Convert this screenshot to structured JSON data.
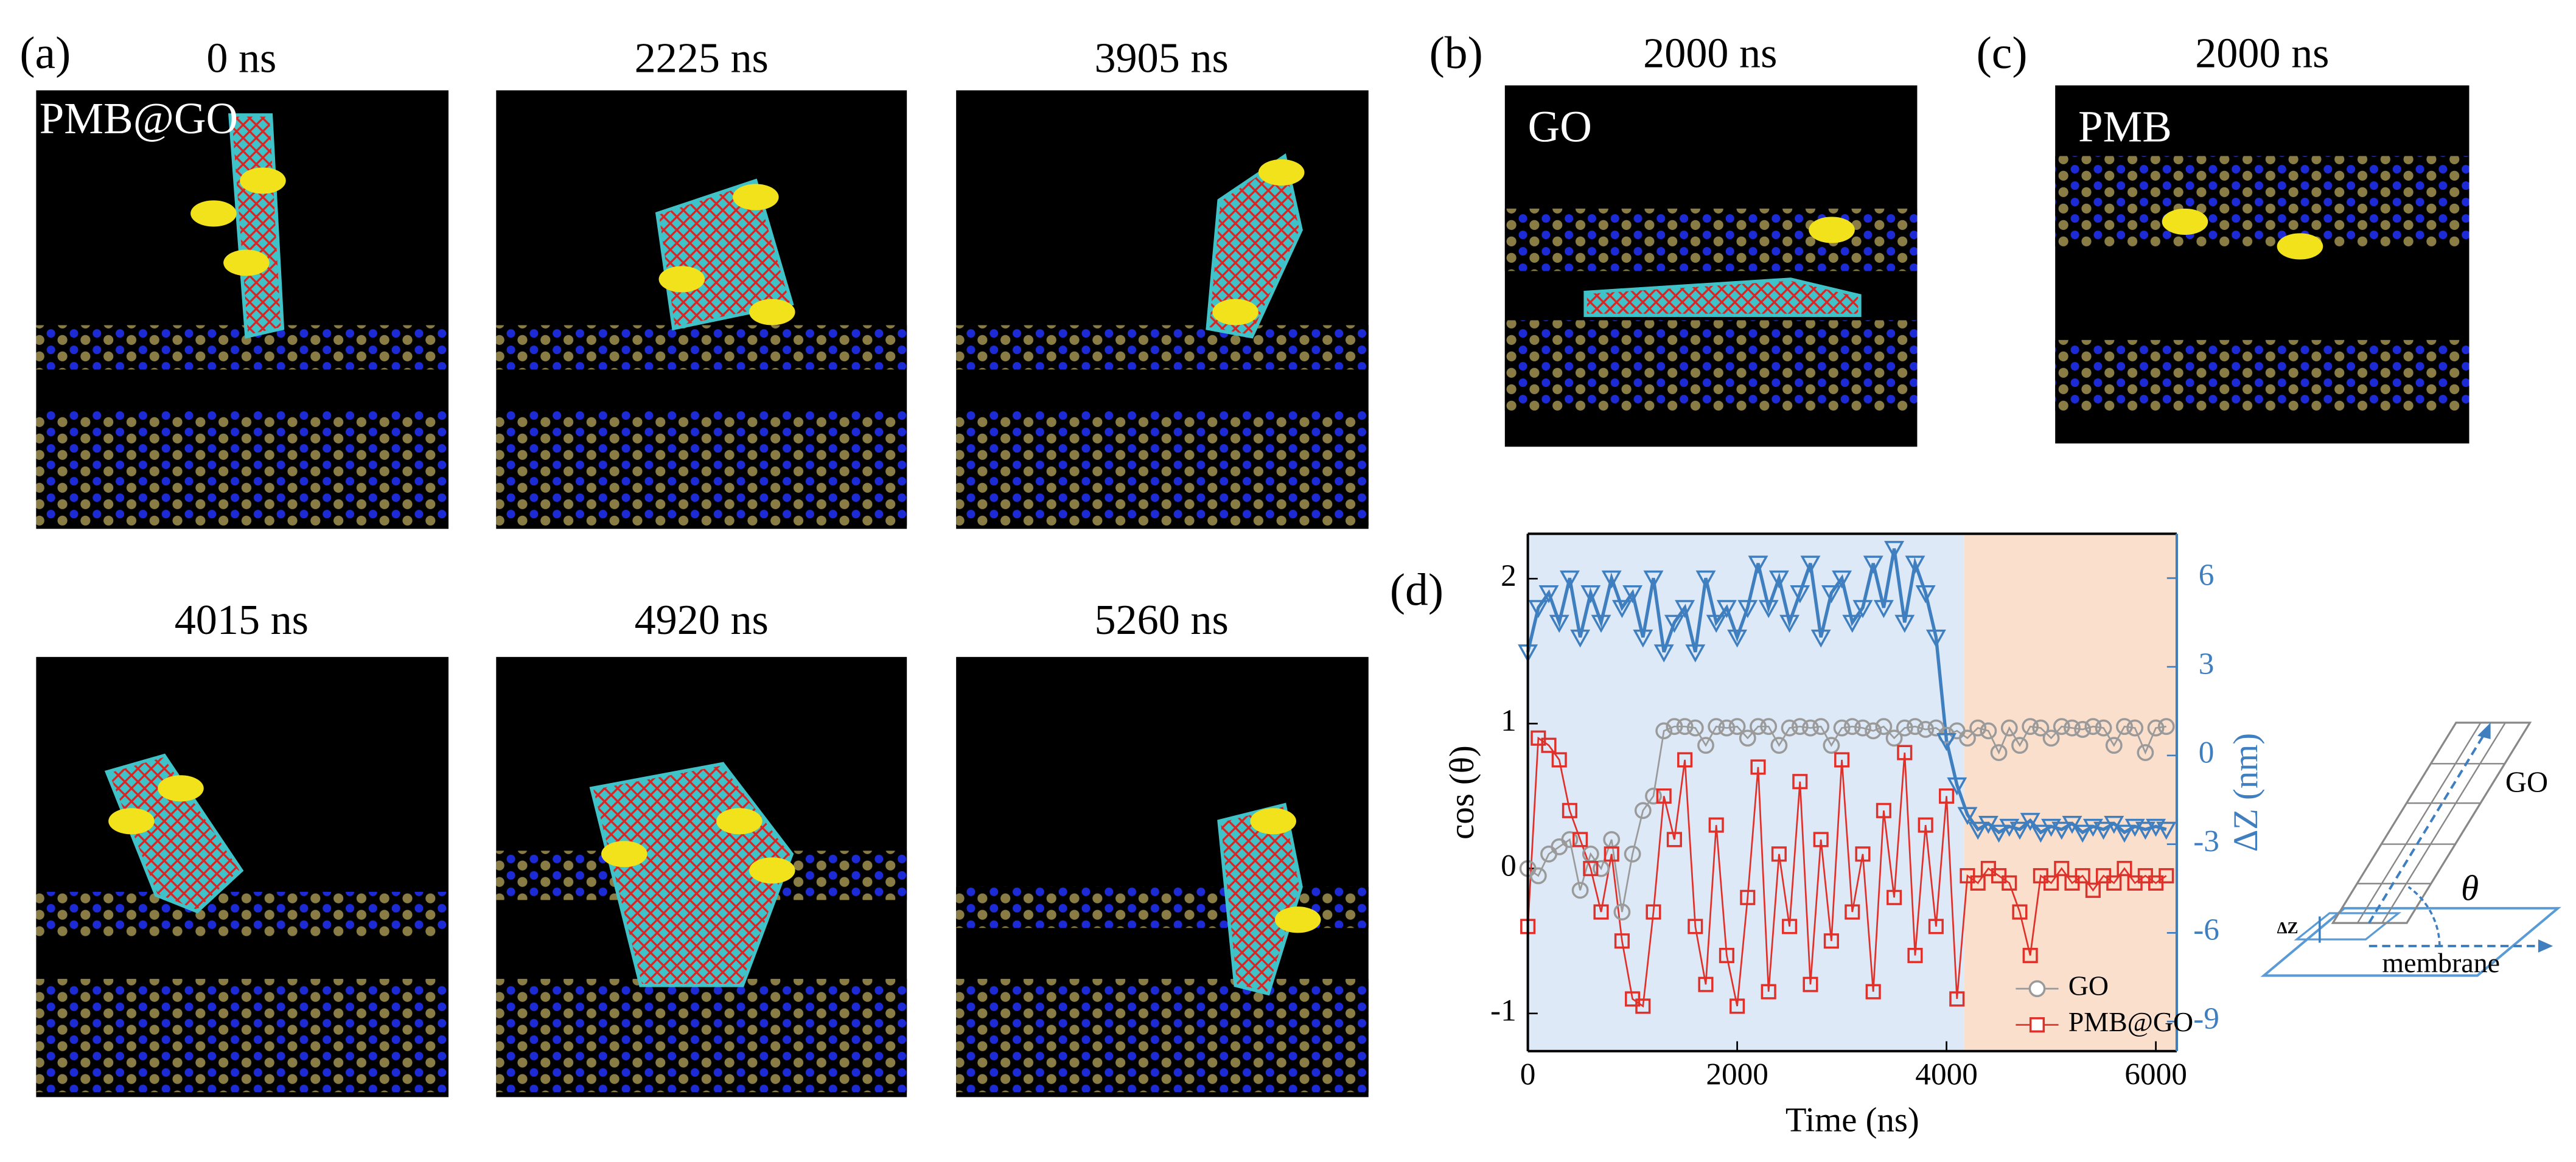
{
  "panel_labels": [
    "(a)",
    "(b)",
    "(c)",
    "(d)"
  ],
  "snapshots": [
    {
      "time": "0 ns",
      "tag": "PMB@GO"
    },
    {
      "time": "2225 ns"
    },
    {
      "time": "3905 ns"
    },
    {
      "time": "4015 ns"
    },
    {
      "time": "4920 ns"
    },
    {
      "time": "5260 ns"
    },
    {
      "time": "2000 ns",
      "tag": "GO"
    },
    {
      "time": "2000 ns",
      "tag": "PMB"
    }
  ],
  "chart_data": {
    "type": "line",
    "xlabel": "Time (ns)",
    "ylabel": "cos (θ)",
    "y2label": "ΔZ (nm)",
    "xlim": [
      0,
      6200
    ],
    "xticks": [
      0,
      2000,
      4000,
      6000
    ],
    "ylim": [
      -1.26,
      2.31
    ],
    "yticks": [
      -1,
      0,
      1,
      2
    ],
    "y2lim": [
      -10,
      7.5
    ],
    "y2ticks": [
      -9,
      -6,
      -3,
      0,
      3,
      6
    ],
    "y2color": "#3f7fbf",
    "legend": "lower right",
    "regions": [
      {
        "range": [
          0,
          4170
        ],
        "color": "#dde9f6"
      },
      {
        "range": [
          4170,
          6200
        ],
        "color": "#fadfcd"
      }
    ],
    "x": [
      0,
      100,
      200,
      300,
      400,
      500,
      600,
      700,
      800,
      900,
      1000,
      1100,
      1200,
      1300,
      1400,
      1500,
      1600,
      1700,
      1800,
      1900,
      2000,
      2100,
      2200,
      2300,
      2400,
      2500,
      2600,
      2700,
      2800,
      2900,
      3000,
      3100,
      3200,
      3300,
      3400,
      3500,
      3600,
      3700,
      3800,
      3900,
      4000,
      4100,
      4200,
      4300,
      4400,
      4500,
      4600,
      4700,
      4800,
      4900,
      5000,
      5100,
      5200,
      5300,
      5400,
      5500,
      5600,
      5700,
      5800,
      5900,
      6000,
      6100
    ],
    "series": [
      {
        "name": "GO",
        "color": "#9a9a9a",
        "marker": "circle",
        "axis": "y",
        "values": [
          0,
          -0.05,
          0.1,
          0.15,
          0.2,
          -0.15,
          0.1,
          0.0,
          0.2,
          -0.3,
          0.1,
          0.4,
          0.5,
          0.95,
          0.98,
          0.98,
          0.97,
          0.85,
          0.98,
          0.97,
          0.98,
          0.9,
          0.98,
          0.98,
          0.85,
          0.97,
          0.98,
          0.97,
          0.98,
          0.85,
          0.97,
          0.98,
          0.97,
          0.95,
          0.98,
          0.9,
          0.97,
          0.98,
          0.96,
          0.97,
          0.92,
          0.95,
          0.9,
          0.97,
          0.95,
          0.8,
          0.97,
          0.85,
          0.98,
          0.97,
          0.9,
          0.98,
          0.97,
          0.96,
          0.98,
          0.97,
          0.85,
          0.98,
          0.97,
          0.8,
          0.97,
          0.98
        ]
      },
      {
        "name": "PMB@GO",
        "color": "#e0302a",
        "marker": "square",
        "axis": "y",
        "values": [
          -0.4,
          0.9,
          0.85,
          0.75,
          0.4,
          0.2,
          0.0,
          -0.3,
          0.1,
          -0.5,
          -0.9,
          -0.95,
          -0.3,
          0.5,
          0.2,
          0.75,
          -0.4,
          -0.8,
          0.3,
          -0.6,
          -0.95,
          -0.2,
          0.7,
          -0.85,
          0.1,
          -0.4,
          0.6,
          -0.8,
          0.2,
          -0.5,
          0.75,
          -0.3,
          0.1,
          -0.85,
          0.4,
          -0.2,
          0.8,
          -0.6,
          0.3,
          -0.4,
          0.5,
          -0.9,
          -0.05,
          -0.1,
          0.0,
          -0.05,
          -0.1,
          -0.3,
          -0.6,
          -0.05,
          -0.1,
          0.0,
          -0.1,
          -0.05,
          -0.15,
          -0.05,
          -0.1,
          0.0,
          -0.1,
          -0.05,
          -0.1,
          -0.05
        ]
      },
      {
        "color": "#3f7fbf",
        "marker": "triangle-down",
        "axis": "y2",
        "values": [
          3.5,
          5,
          5.5,
          4.5,
          6,
          4,
          5.5,
          4.5,
          6,
          5,
          5.5,
          4,
          6,
          3.5,
          4.5,
          5,
          3.5,
          6,
          4.5,
          5,
          4,
          5,
          6.5,
          5,
          6,
          4.5,
          5.5,
          6.5,
          4,
          5.5,
          6,
          4.5,
          5,
          6.5,
          5,
          7,
          4.5,
          6.5,
          5.5,
          4,
          0.5,
          -1,
          -2,
          -2.5,
          -2.3,
          -2.6,
          -2.4,
          -2.5,
          -2.2,
          -2.6,
          -2.4,
          -2.5,
          -2.3,
          -2.6,
          -2.4,
          -2.5,
          -2.3,
          -2.6,
          -2.4,
          -2.5,
          -2.4,
          -2.5
        ]
      }
    ]
  },
  "schematic": {
    "sheet": "GO",
    "angle": "θ",
    "offset": "ΔZ",
    "plane": "membrane"
  }
}
